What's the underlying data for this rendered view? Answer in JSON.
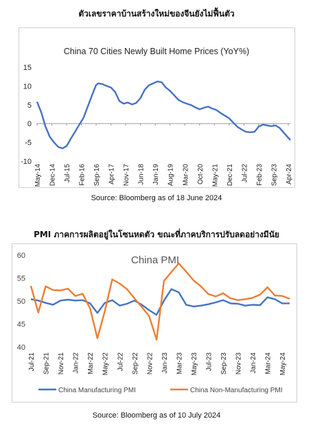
{
  "page": {
    "heading1": "ตัวเลขราคาบ้านสร้างใหม่ของจีนยังไม่ฟื้นตัว",
    "heading2": "PMI ภาคการผลิตอยู่ในโซนหดตัว ขณะที่ภาคบริการปรับลดอย่างมีนัย",
    "source1": "Source: Bloomberg as of 18 June 2024",
    "source2": "Source: Bloomberg as of 10 July 2024"
  },
  "chart_data": [
    {
      "type": "line",
      "title": "China 70 Cities Newly Built Home Prices (YoY%)",
      "ylim": [
        -10,
        15
      ],
      "yticks": [
        15,
        10,
        5,
        0,
        -5,
        -10
      ],
      "tick_labels": [
        "May-14",
        "Dec-14",
        "Jul-15",
        "Feb-16",
        "Sep-16",
        "Apr-17",
        "Nov-17",
        "Jun-18",
        "Jan-19",
        "Aug-19",
        "Mar-20",
        "Oct-20",
        "May-21",
        "Dec-21",
        "Jul-22",
        "Feb-23",
        "Sep-23",
        "Apr-24"
      ],
      "color": "#4472c4",
      "series": [
        {
          "x": [
            "2014-05",
            "2014-07",
            "2014-09",
            "2014-11",
            "2015-01",
            "2015-03",
            "2015-05",
            "2015-07",
            "2015-09",
            "2015-11",
            "2016-01",
            "2016-03",
            "2016-05",
            "2016-07",
            "2016-09",
            "2016-10",
            "2016-12",
            "2017-02",
            "2017-04",
            "2017-06",
            "2017-08",
            "2017-10",
            "2017-12",
            "2018-02",
            "2018-04",
            "2018-06",
            "2018-08",
            "2018-10",
            "2018-12",
            "2019-02",
            "2019-04",
            "2019-06",
            "2019-08",
            "2019-10",
            "2019-12",
            "2020-02",
            "2020-04",
            "2020-06",
            "2020-08",
            "2020-10",
            "2020-12",
            "2021-02",
            "2021-04",
            "2021-06",
            "2021-08",
            "2021-10",
            "2021-12",
            "2022-02",
            "2022-04",
            "2022-06",
            "2022-08",
            "2022-10",
            "2022-12",
            "2023-02",
            "2023-04",
            "2023-06",
            "2023-08",
            "2023-10",
            "2023-12",
            "2024-02",
            "2024-05"
          ],
          "values": [
            5.8,
            3.0,
            -0.8,
            -3.5,
            -5.0,
            -6.2,
            -6.6,
            -6.0,
            -4.0,
            -2.2,
            -0.3,
            1.5,
            4.5,
            7.5,
            10.3,
            10.7,
            10.5,
            10.0,
            9.6,
            8.4,
            6.0,
            5.3,
            5.6,
            5.1,
            5.5,
            6.8,
            9.0,
            10.2,
            10.7,
            11.2,
            11.0,
            9.6,
            8.7,
            7.5,
            6.3,
            5.7,
            5.3,
            4.9,
            4.3,
            3.8,
            4.2,
            4.5,
            4.0,
            3.6,
            2.8,
            2.1,
            1.4,
            0.2,
            -0.9,
            -1.6,
            -2.2,
            -2.3,
            -2.2,
            -0.8,
            -0.3,
            -0.5,
            -0.7,
            -0.5,
            -1.2,
            -2.5,
            -4.4
          ]
        }
      ]
    },
    {
      "type": "line",
      "title": "China PMI",
      "ylim": [
        40,
        60
      ],
      "yticks": [
        60,
        55,
        50,
        45,
        40
      ],
      "categories": [
        "Jul-21",
        "Aug-21",
        "Sep-21",
        "Oct-21",
        "Nov-21",
        "Dec-21",
        "Jan-22",
        "Feb-22",
        "Mar-22",
        "Apr-22",
        "May-22",
        "Jun-22",
        "Jul-22",
        "Aug-22",
        "Sep-22",
        "Oct-22",
        "Nov-22",
        "Dec-22",
        "Jan-23",
        "Feb-23",
        "Mar-23",
        "Apr-23",
        "May-23",
        "Jun-23",
        "Jul-23",
        "Aug-23",
        "Sep-23",
        "Oct-23",
        "Nov-23",
        "Dec-23",
        "Jan-24",
        "Feb-24",
        "Mar-24",
        "Apr-24",
        "May-24",
        "Jun-24"
      ],
      "tick_labels": [
        "Jul-21",
        "Sep-21",
        "Nov-21",
        "Jan-22",
        "Mar-22",
        "May-22",
        "Jul-22",
        "Sep-22",
        "Nov-22",
        "Jan-23",
        "Mar-23",
        "May-23",
        "Jul-23",
        "Sep-23",
        "Nov-23",
        "Jan-24",
        "Mar-24",
        "May-24"
      ],
      "series": [
        {
          "name": "China Manufacturing PMI",
          "color": "#4472c4",
          "values": [
            50.4,
            50.1,
            49.6,
            49.2,
            50.1,
            50.3,
            50.1,
            50.2,
            49.5,
            47.4,
            49.6,
            50.2,
            49.0,
            49.4,
            50.1,
            49.2,
            48.0,
            47.0,
            50.1,
            52.6,
            51.9,
            49.2,
            48.8,
            49.0,
            49.3,
            49.7,
            50.2,
            49.5,
            49.4,
            49.0,
            49.2,
            49.1,
            50.8,
            50.4,
            49.5,
            49.5
          ]
        },
        {
          "name": "China Non-Manufacturing PMI",
          "color": "#ed7d31",
          "values": [
            53.3,
            47.5,
            53.2,
            52.4,
            52.3,
            52.7,
            51.1,
            51.6,
            48.4,
            41.9,
            47.8,
            54.7,
            53.8,
            52.6,
            50.6,
            48.7,
            46.7,
            41.6,
            54.4,
            56.3,
            58.2,
            56.4,
            54.5,
            53.2,
            51.5,
            51.0,
            51.7,
            50.6,
            50.2,
            50.4,
            50.7,
            51.4,
            53.0,
            51.2,
            51.1,
            50.5
          ]
        }
      ]
    }
  ]
}
